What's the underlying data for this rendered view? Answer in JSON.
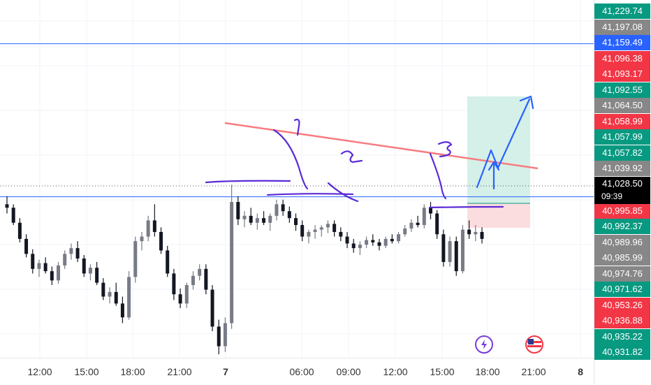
{
  "colors": {
    "up": "#787b86",
    "down": "#131722",
    "label_green": "#089981",
    "label_red": "#f23645",
    "label_gray": "#878787",
    "label_blue": "#2962ff",
    "label_dark": "#000000",
    "hline": "#2962ff",
    "trendline": "#f77c80",
    "drawing": "#5b2bd6",
    "arrow": "#2962ff",
    "profit_zone": "#cfeee6",
    "loss_zone": "#fbd9dd"
  },
  "chart_data": {
    "type": "candlestick",
    "ylim": [
      40925,
      41235
    ],
    "current_price": {
      "value": "41,028.50",
      "countdown": "09:39"
    },
    "horizontal_lines": [
      41197.08,
      41064.5
    ],
    "trendline": {
      "from": [
        0,
        41064
      ],
      "to": [
        1,
        41041
      ]
    },
    "price_labels": [
      {
        "text": "41,229.74",
        "color": "green"
      },
      {
        "text": "41,197.08",
        "color": "gray"
      },
      {
        "text": "41,159.49",
        "color": "blue"
      },
      {
        "text": "41,096.38",
        "color": "red"
      },
      {
        "text": "41,093.17",
        "color": "red"
      },
      {
        "text": "41,092.55",
        "color": "green"
      },
      {
        "text": "41,064.50",
        "color": "gray"
      },
      {
        "text": "41,058.99",
        "color": "red"
      },
      {
        "text": "41,057.99",
        "color": "green"
      },
      {
        "text": "41,057.82",
        "color": "green"
      },
      {
        "text": "41,039.92",
        "color": "gray"
      },
      {
        "text": "40,995.85",
        "color": "red"
      },
      {
        "text": "40,992.37",
        "color": "green"
      },
      {
        "text": "40,989.96",
        "color": "gray"
      },
      {
        "text": "40,985.99",
        "color": "gray"
      },
      {
        "text": "40,974.76",
        "color": "gray"
      },
      {
        "text": "40,971.62",
        "color": "green"
      },
      {
        "text": "40,953.26",
        "color": "red"
      },
      {
        "text": "40,936.88",
        "color": "red"
      },
      {
        "text": "40,935.22",
        "color": "green"
      },
      {
        "text": "40,931.82",
        "color": "green"
      }
    ],
    "x_ticks": [
      {
        "label": "12:00",
        "bold": false
      },
      {
        "label": "15:00",
        "bold": false
      },
      {
        "label": "18:00",
        "bold": false
      },
      {
        "label": "21:00",
        "bold": false
      },
      {
        "label": "7",
        "bold": true
      },
      {
        "label": "06:00",
        "bold": false
      },
      {
        "label": "09:00",
        "bold": false
      },
      {
        "label": "12:00",
        "bold": false
      },
      {
        "label": "15:00",
        "bold": false
      },
      {
        "label": "18:00",
        "bold": false
      },
      {
        "label": "21:00",
        "bold": false
      },
      {
        "label": "8",
        "bold": true
      }
    ],
    "candles": [
      [
        41058,
        41065,
        41050,
        41055
      ],
      [
        41055,
        41058,
        41040,
        41042
      ],
      [
        41042,
        41046,
        41025,
        41028
      ],
      [
        41028,
        41032,
        41012,
        41015
      ],
      [
        41015,
        41019,
        40998,
        41002
      ],
      [
        41002,
        41010,
        40995,
        41007
      ],
      [
        41007,
        41012,
        40998,
        41000
      ],
      [
        41000,
        41004,
        40988,
        40992
      ],
      [
        40992,
        41008,
        40989,
        41005
      ],
      [
        41005,
        41018,
        41002,
        41015
      ],
      [
        41015,
        41024,
        41010,
        41020
      ],
      [
        41020,
        41026,
        41008,
        41011
      ],
      [
        41011,
        41014,
        40995,
        40998
      ],
      [
        40998,
        41006,
        40992,
        41003
      ],
      [
        41003,
        41008,
        40988,
        40990
      ],
      [
        40990,
        40994,
        40975,
        40978
      ],
      [
        40978,
        40986,
        40972,
        40982
      ],
      [
        40982,
        40990,
        40970,
        40972
      ],
      [
        40972,
        40978,
        40955,
        40960
      ],
      [
        40960,
        41000,
        40958,
        40995
      ],
      [
        40995,
        41030,
        40990,
        41026
      ],
      [
        41026,
        41034,
        41018,
        41030
      ],
      [
        41030,
        41048,
        41026,
        41044
      ],
      [
        41044,
        41058,
        41030,
        41034
      ],
      [
        41034,
        41038,
        41015,
        41018
      ],
      [
        41018,
        41022,
        40995,
        40998
      ],
      [
        40998,
        41002,
        40975,
        40980
      ],
      [
        40980,
        40985,
        40968,
        40972
      ],
      [
        40972,
        40990,
        40968,
        40988
      ],
      [
        40988,
        41000,
        40984,
        40996
      ],
      [
        40996,
        41006,
        40992,
        41002
      ],
      [
        41002,
        41006,
        40980,
        40984
      ],
      [
        40984,
        40988,
        40948,
        40952
      ],
      [
        40952,
        40958,
        40928,
        40935
      ],
      [
        40935,
        40960,
        40930,
        40955
      ],
      [
        40955,
        41075,
        40950,
        41060
      ],
      [
        41060,
        41065,
        41040,
        41045
      ],
      [
        41045,
        41052,
        41038,
        41048
      ],
      [
        41048,
        41055,
        41040,
        41042
      ],
      [
        41042,
        41050,
        41036,
        41046
      ],
      [
        41046,
        41052,
        41040,
        41042
      ],
      [
        41042,
        41050,
        41035,
        41048
      ],
      [
        41048,
        41062,
        41044,
        41058
      ],
      [
        41058,
        41062,
        41048,
        41052
      ],
      [
        41052,
        41056,
        41042,
        41046
      ],
      [
        41046,
        41050,
        41035,
        41040
      ],
      [
        41040,
        41044,
        41026,
        41030
      ],
      [
        41030,
        41036,
        41024,
        41034
      ],
      [
        41034,
        41040,
        41028,
        41036
      ],
      [
        41036,
        41040,
        41030,
        41038
      ],
      [
        41038,
        41044,
        41033,
        41041
      ],
      [
        41041,
        41044,
        41030,
        41034
      ],
      [
        41034,
        41038,
        41026,
        41030
      ],
      [
        41030,
        41034,
        41020,
        41024
      ],
      [
        41024,
        41028,
        41016,
        41020
      ],
      [
        41020,
        41026,
        41014,
        41023
      ],
      [
        41023,
        41030,
        41020,
        41027
      ],
      [
        41027,
        41032,
        41022,
        41025
      ],
      [
        41025,
        41028,
        41018,
        41022
      ],
      [
        41022,
        41030,
        41020,
        41028
      ],
      [
        41028,
        41032,
        41024,
        41026
      ],
      [
        41026,
        41034,
        41024,
        41032
      ],
      [
        41032,
        41040,
        41030,
        41037
      ],
      [
        41037,
        41045,
        41034,
        41042
      ],
      [
        41042,
        41048,
        41038,
        41040
      ],
      [
        41040,
        41058,
        41037,
        41055
      ],
      [
        41055,
        41060,
        41045,
        41050
      ],
      [
        41050,
        41053,
        41028,
        41032
      ],
      [
        41032,
        41036,
        41004,
        41008
      ],
      [
        41008,
        41030,
        41004,
        41026
      ],
      [
        41026,
        41030,
        40996,
        41000
      ],
      [
        41000,
        41040,
        40998,
        41036
      ],
      [
        41036,
        41044,
        41028,
        41032
      ],
      [
        41032,
        41040,
        41026,
        41034
      ],
      [
        41034,
        41038,
        41024,
        41028
      ]
    ]
  }
}
